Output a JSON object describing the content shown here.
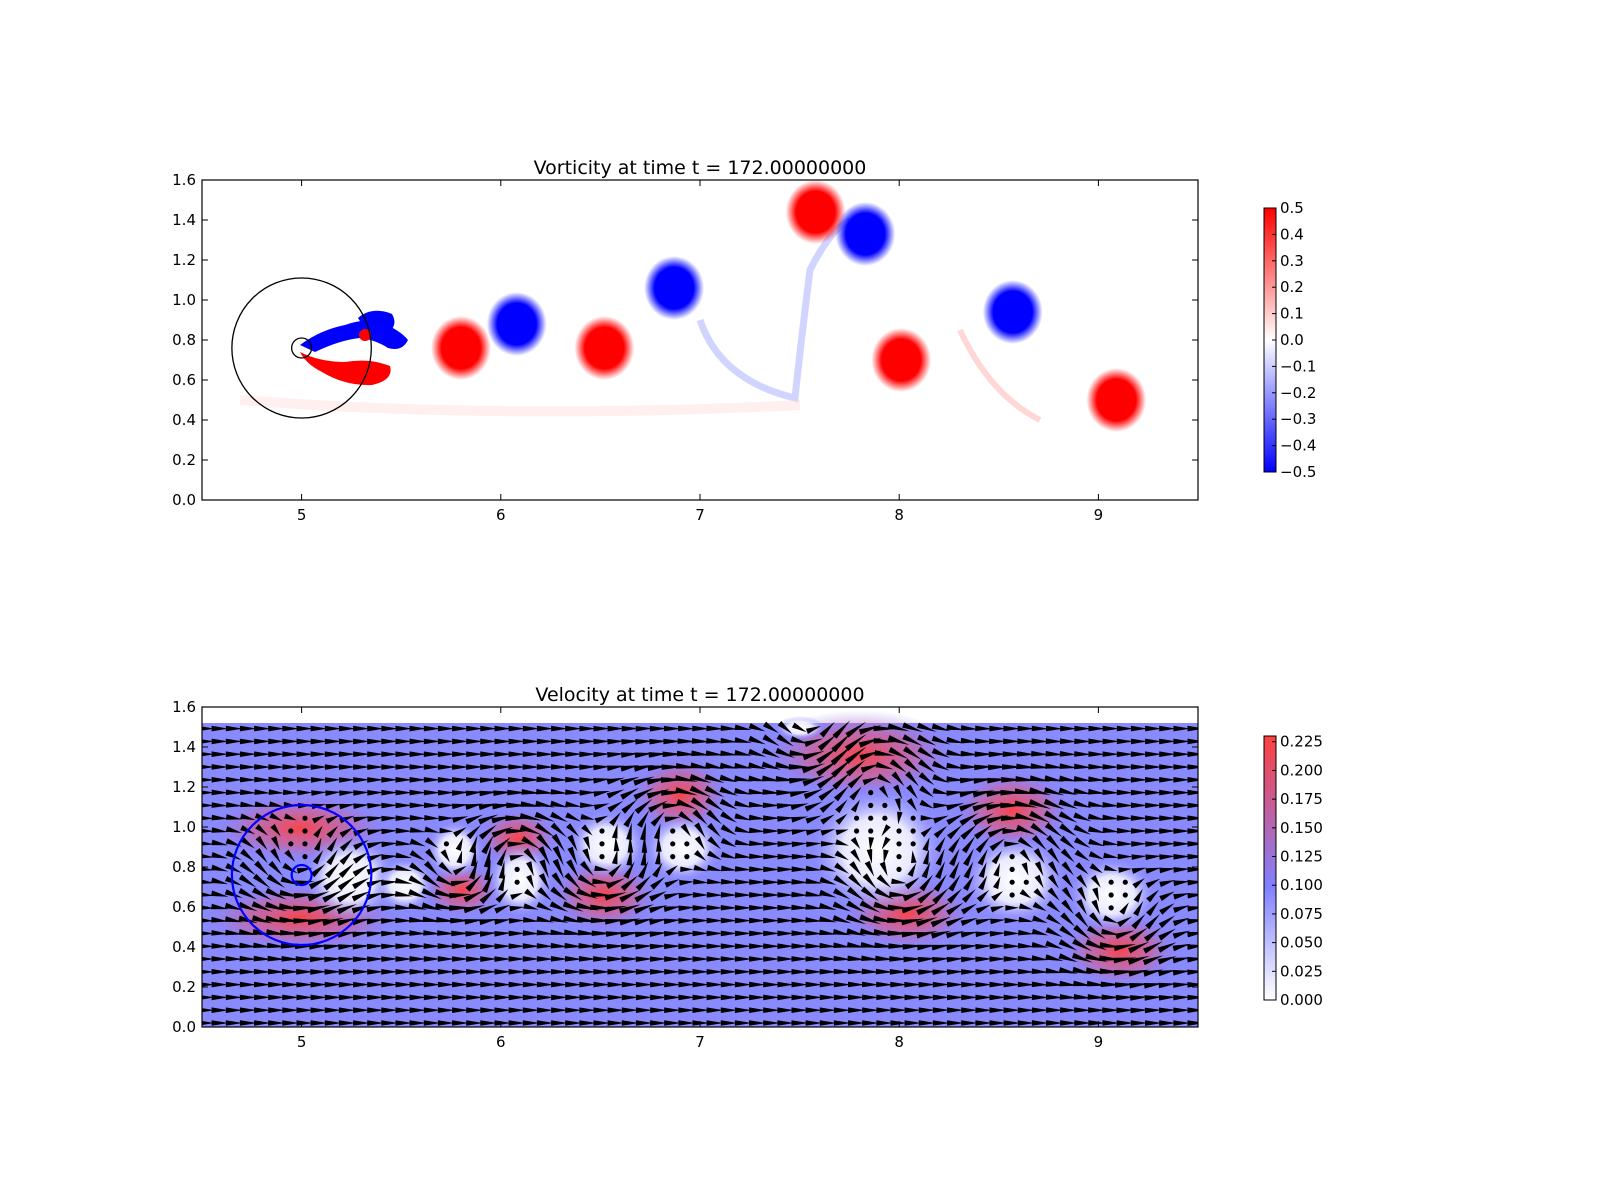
{
  "chart_data": [
    {
      "type": "heatmap",
      "title": "Vorticity at time t =   172.00000000",
      "xlabel": "",
      "ylabel": "",
      "xlim": [
        4.5,
        9.5
      ],
      "ylim": [
        0.0,
        1.6
      ],
      "x_ticks": [
        "5",
        "6",
        "7",
        "8",
        "9"
      ],
      "y_ticks": [
        "0.0",
        "0.2",
        "0.4",
        "0.6",
        "0.8",
        "1.0",
        "1.2",
        "1.4",
        "1.6"
      ],
      "colorbar": {
        "min": -0.5,
        "max": 0.5,
        "colors": [
          "#0000ff",
          "#ffffff",
          "#ff0000"
        ],
        "ticks": [
          "0.5",
          "0.4",
          "0.3",
          "0.2",
          "0.1",
          "0.0",
          "−0.1",
          "−0.2",
          "−0.3",
          "−0.4",
          "−0.5"
        ]
      },
      "vortices": [
        {
          "x": 5.8,
          "y": 0.76,
          "value": 0.5
        },
        {
          "x": 6.08,
          "y": 0.88,
          "value": -0.5
        },
        {
          "x": 6.52,
          "y": 0.76,
          "value": 0.5
        },
        {
          "x": 6.87,
          "y": 1.06,
          "value": -0.5
        },
        {
          "x": 7.58,
          "y": 1.44,
          "value": 0.5
        },
        {
          "x": 7.83,
          "y": 1.33,
          "value": -0.5
        },
        {
          "x": 8.01,
          "y": 0.7,
          "value": 0.5
        },
        {
          "x": 8.57,
          "y": 0.94,
          "value": -0.5
        },
        {
          "x": 9.09,
          "y": 0.5,
          "value": 0.5
        }
      ],
      "circles": [
        {
          "cx": 5.0,
          "cy": 0.76,
          "r": 0.35,
          "color": "#000000"
        },
        {
          "cx": 5.0,
          "cy": 0.76,
          "r": 0.05,
          "color": "#000000"
        }
      ]
    },
    {
      "type": "heatmap",
      "title": "Velocity at time t =   172.00000000",
      "xlabel": "",
      "ylabel": "",
      "xlim": [
        4.5,
        9.5
      ],
      "ylim": [
        0.0,
        1.6
      ],
      "x_ticks": [
        "5",
        "6",
        "7",
        "8",
        "9"
      ],
      "y_ticks": [
        "0.0",
        "0.2",
        "0.4",
        "0.6",
        "0.8",
        "1.0",
        "1.2",
        "1.4",
        "1.6"
      ],
      "colorbar": {
        "min": 0.0,
        "max": 0.23,
        "colors": [
          "#ffffff",
          "#8080ff",
          "#ff4040"
        ],
        "ticks": [
          "0.225",
          "0.200",
          "0.175",
          "0.150",
          "0.125",
          "0.100",
          "0.075",
          "0.050",
          "0.025",
          "0.000"
        ]
      },
      "base_speed": 0.1,
      "quiver": "uniform field u ≈ 0.1 pointing +x, perturbed by vortex swirl",
      "circles": [
        {
          "cx": 5.0,
          "cy": 0.76,
          "r": 0.35,
          "color": "#0000ff"
        },
        {
          "cx": 5.0,
          "cy": 0.76,
          "r": 0.05,
          "color": "#0000ff"
        }
      ]
    }
  ]
}
